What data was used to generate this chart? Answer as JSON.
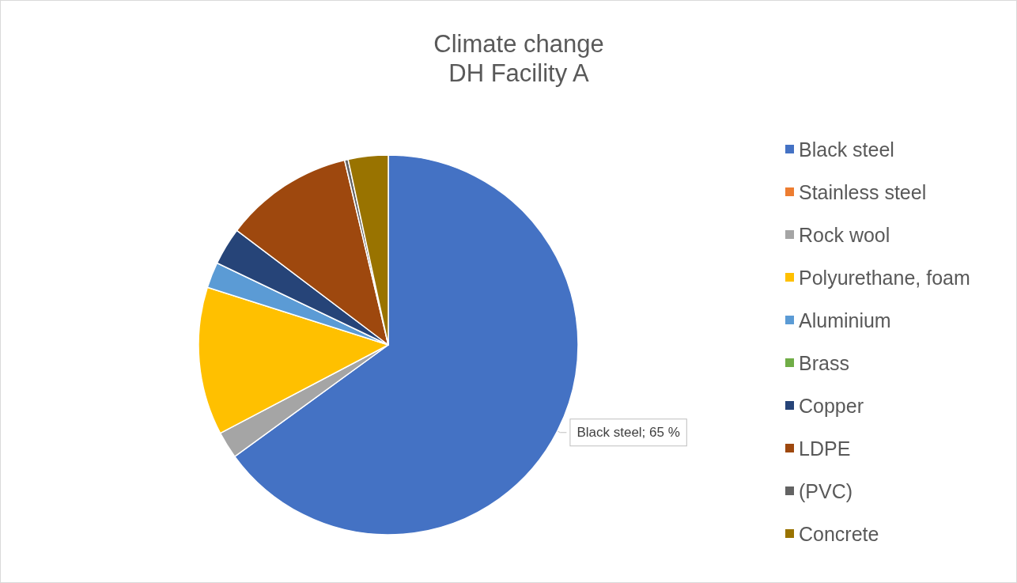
{
  "chart_data": {
    "type": "pie",
    "title": "Climate change",
    "subtitle": "DH Facility A",
    "categories": [
      "Black steel",
      "Stainless steel",
      "Rock wool",
      "Polyurethane, foam",
      "Aluminium",
      "Brass",
      "Copper",
      "LDPE",
      "(PVC)",
      "Concrete"
    ],
    "values": [
      65,
      null,
      2.3,
      12.6,
      2.2,
      null,
      3.2,
      11,
      0.3,
      3.4
    ],
    "colors": [
      "#4472c4",
      "#ed7d31",
      "#a5a5a5",
      "#ffc000",
      "#5b9bd5",
      "#70ad47",
      "#264478",
      "#9e480e",
      "#636363",
      "#997300"
    ],
    "value_labels": [
      "Black steel; 65 %",
      null,
      null,
      null,
      null,
      null,
      null,
      null,
      null,
      null
    ],
    "legend": "right"
  }
}
